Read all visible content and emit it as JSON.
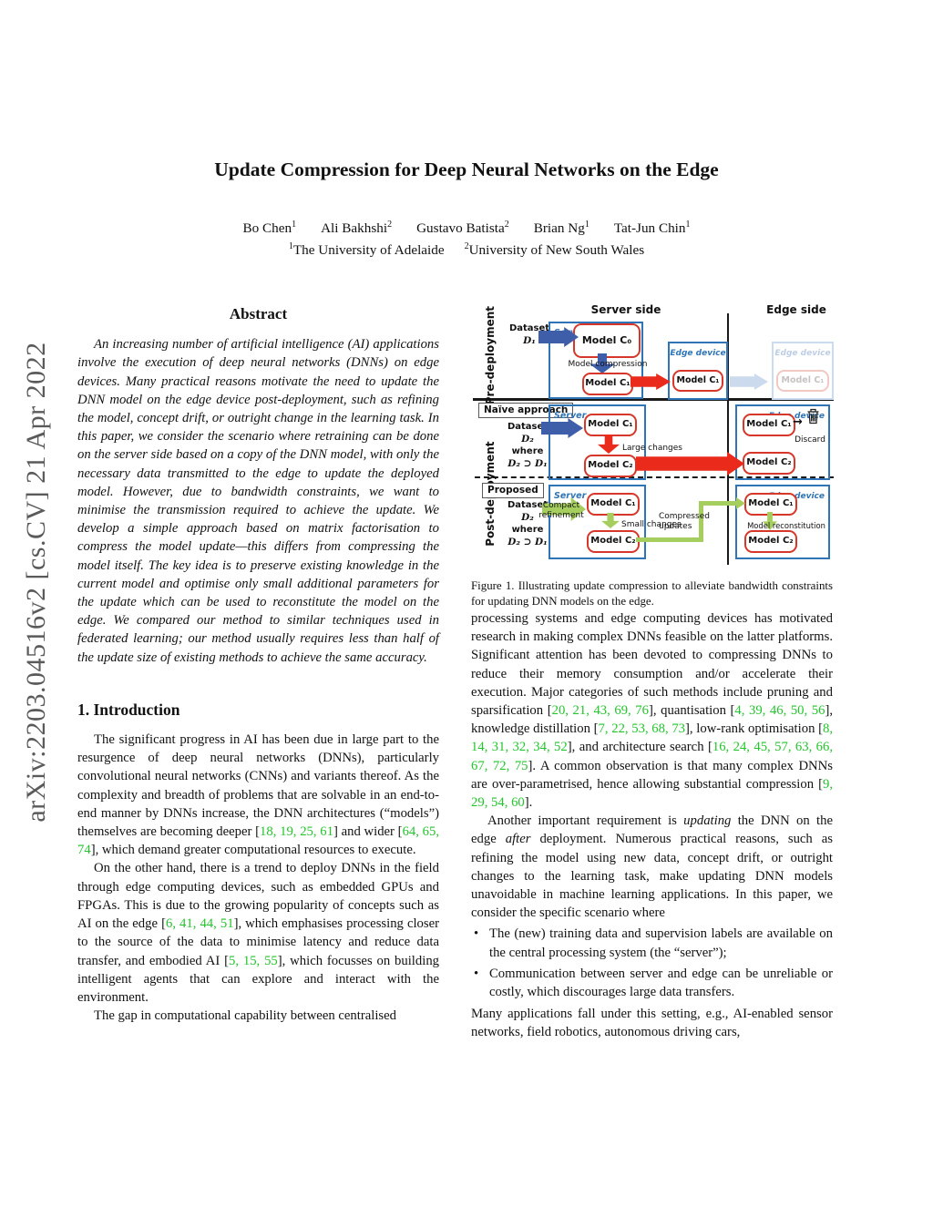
{
  "colors": {
    "cite-green": "#22c52b",
    "box-blue": "#2e74b6",
    "model-red": "#d6372a",
    "arrow-red": "#ea2b1b",
    "arrow-blue": "#3f5ea9",
    "arrow-green": "#a5ce5f",
    "faded-blue": "#ccdaee",
    "line-dark": "#1a1a1a"
  },
  "sidebar": {
    "arxiv_label": "arXiv:2203.04516v2  [cs.CV]  21 Apr 2022"
  },
  "header": {
    "title": "Update Compression for Deep Neural Networks on the Edge",
    "authors": [
      {
        "name": "Bo Chen",
        "sup": "1"
      },
      {
        "name": "Ali Bakhshi",
        "sup": "2"
      },
      {
        "name": "Gustavo Batista",
        "sup": "2"
      },
      {
        "name": "Brian Ng",
        "sup": "1"
      },
      {
        "name": "Tat-Jun Chin",
        "sup": "1"
      }
    ],
    "affiliations": [
      {
        "sup": "1",
        "text": "The University of Adelaide"
      },
      {
        "sup": "2",
        "text": "University of New South Wales"
      }
    ]
  },
  "abstract": {
    "heading": "Abstract",
    "text": "An increasing number of artificial intelligence (AI) applications involve the execution of deep neural networks (DNNs) on edge devices. Many practical reasons motivate the need to update the DNN model on the edge device post-deployment, such as refining the model, concept drift, or outright change in the learning task. In this paper, we consider the scenario where retraining can be done on the server side based on a copy of the DNN model, with only the necessary data transmitted to the edge to update the deployed model. However, due to bandwidth constraints, we want to minimise the transmission required to achieve the update. We develop a simple approach based on matrix factorisation to compress the model update—this differs from compressing the model itself. The key idea is to preserve existing knowledge in the current model and optimise only small additional parameters for the update which can be used to reconstitute the model on the edge. We compared our method to similar techniques used in federated learning; our method usually requires less than half of the update size of existing methods to achieve the same accuracy."
  },
  "intro": {
    "heading": "1. Introduction",
    "p1": [
      {
        "t": "The significant progress in AI has been due in large part to the resurgence of deep neural networks (DNNs), particularly convolutional neural networks (CNNs) and variants thereof.  As the complexity and breadth of problems that are solvable in an end-to-end manner by DNNs increase, the DNN architectures (“models”) themselves are becoming deeper ["
      },
      {
        "t": "18, 19, 25, 61",
        "cls": "cite"
      },
      {
        "t": "] and wider ["
      },
      {
        "t": "64, 65, 74",
        "cls": "cite"
      },
      {
        "t": "], which demand greater computational resources to execute."
      }
    ],
    "p2": [
      {
        "t": "On the other hand, there is a trend to deploy DNNs in the field through edge computing devices, such as embedded GPUs and FPGAs.  This is due to the growing popularity of concepts such as AI on the edge ["
      },
      {
        "t": "6, 41, 44, 51",
        "cls": "cite"
      },
      {
        "t": "], which emphasises processing closer to the source of the data to minimise latency and reduce data transfer, and embodied AI ["
      },
      {
        "t": "5, 15, 55",
        "cls": "cite"
      },
      {
        "t": "], which focusses on building intelligent agents that can explore and interact with the environment."
      }
    ],
    "p3": [
      {
        "t": "The gap in computational capability between centralised"
      }
    ]
  },
  "col2": {
    "p1": [
      {
        "t": "processing systems and edge computing devices has motivated research in making complex DNNs feasible on the latter platforms.  Significant attention has been devoted to compressing DNNs to reduce their memory consumption and/or accelerate their execution.  Major categories of such methods include pruning and sparsification ["
      },
      {
        "t": "20, 21, 43, 69, 76",
        "cls": "cite"
      },
      {
        "t": "], quantisation ["
      },
      {
        "t": "4, 39, 46, 50, 56",
        "cls": "cite"
      },
      {
        "t": "], knowledge distillation ["
      },
      {
        "t": "7, 22, 53, 68, 73",
        "cls": "cite"
      },
      {
        "t": "], low-rank optimisation ["
      },
      {
        "t": "8, 14, 31, 32, 34, 52",
        "cls": "cite"
      },
      {
        "t": "], and architecture search ["
      },
      {
        "t": "16, 24, 45, 57, 63, 66, 67, 72, 75",
        "cls": "cite"
      },
      {
        "t": "].  A common observation is that many complex DNNs are over-parametrised, hence allowing substantial compression ["
      },
      {
        "t": "9, 29, 54, 60",
        "cls": "cite"
      },
      {
        "t": "]."
      }
    ],
    "p2": [
      {
        "t": "Another important requirement is "
      },
      {
        "t": "updating",
        "cls": "it"
      },
      {
        "t": " the DNN on the edge "
      },
      {
        "t": "after",
        "cls": "it"
      },
      {
        "t": " deployment.  Numerous practical reasons, such as refining the model using new data, concept drift, or outright changes to the learning task, make updating DNN models unavoidable in machine learning applications.  In this paper, we consider the specific scenario where"
      }
    ],
    "bullet_char": "•",
    "bullets": [
      "The (new) training data and supervision labels are available on the central processing system (the “server”);",
      "Communication between server and edge can be unreliable or costly, which discourages large data transfers."
    ],
    "p3": [
      {
        "t": "Many applications fall under this setting, e.g., AI-enabled sensor networks, field robotics, autonomous driving cars,"
      }
    ]
  },
  "figure": {
    "caption": "Figure 1.  Illustrating update compression to alleviate bandwidth constraints for updating DNN models on the edge.",
    "headers": {
      "server": "Server side",
      "edge": "Edge side"
    },
    "rows": {
      "pre": "Pre-deployment",
      "post": "Post-deployment"
    },
    "pre": {
      "dataset": [
        "Dataset",
        "D₁"
      ],
      "train": "Train",
      "server_label": "Server",
      "model_c0": "Model C₀",
      "compression": "Model compression",
      "model_c1": "Model C₁",
      "clone": "Clone",
      "edge_label": "Edge device",
      "edge_c1": "Model C₁",
      "deploy": "Deploy",
      "ghost_label": "Edge device",
      "ghost_c1": "Model C₁"
    },
    "post_dataset": [
      "Dataset",
      "D₂",
      "where",
      "D₂ ⊃ D₁"
    ],
    "naive": {
      "tag": "Naïve approach",
      "retrain": "Retrain",
      "server_label": "Server",
      "model_c1": "Model C₁",
      "large_changes": "Large changes",
      "model_c2": "Model C₂",
      "dense_updates": "Dense updates",
      "edge_label": "Edge device",
      "edge_c1": "Model C₁",
      "discard": "Discard",
      "edge_c2": "Model C₂"
    },
    "proposed": {
      "tag": "Proposed",
      "refine": "Compact refinement",
      "server_label": "Server",
      "model_c1": "Model C₁",
      "small_changes": "Small changes",
      "model_c2": "Model C₂",
      "compressed_updates": "Compressed updates",
      "edge_label": "Edge device",
      "edge_c1": "Model C₁",
      "reconstitution": "Model reconstitution",
      "edge_c2": "Model C₂"
    }
  },
  "icons": {
    "right_arrow": "→"
  }
}
